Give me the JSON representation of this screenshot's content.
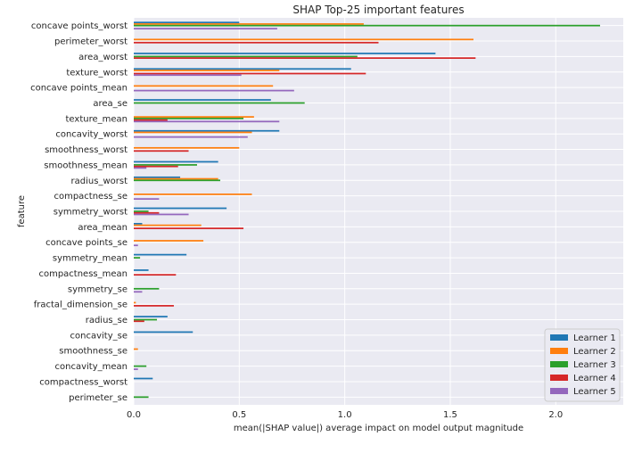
{
  "chart_data": {
    "type": "bar",
    "orientation": "horizontal",
    "title": "SHAP Top-25 important features",
    "xlabel": "mean(|SHAP value|) average impact on model output magnitude",
    "ylabel": "feature",
    "xlim": [
      0,
      2.32
    ],
    "xticks": [
      "0.0",
      "0.5",
      "1.0",
      "1.5",
      "2.0"
    ],
    "grid": true,
    "legend_position": "bottom-right",
    "categories": [
      "concave points_worst",
      "perimeter_worst",
      "area_worst",
      "texture_worst",
      "concave points_mean",
      "area_se",
      "texture_mean",
      "concavity_worst",
      "smoothness_worst",
      "smoothness_mean",
      "radius_worst",
      "compactness_se",
      "symmetry_worst",
      "area_mean",
      "concave points_se",
      "symmetry_mean",
      "compactness_mean",
      "symmetry_se",
      "fractal_dimension_se",
      "radius_se",
      "concavity_se",
      "smoothness_se",
      "concavity_mean",
      "compactness_worst",
      "perimeter_se"
    ],
    "series": [
      {
        "name": "Learner 1",
        "color": "#1f77b4",
        "values": [
          0.5,
          0.0,
          1.43,
          1.03,
          0.0,
          0.65,
          0.0,
          0.69,
          0.0,
          0.4,
          0.22,
          0.0,
          0.44,
          0.04,
          0.0,
          0.25,
          0.07,
          0.0,
          0.0,
          0.16,
          0.28,
          0.0,
          0.0,
          0.09,
          0.0
        ]
      },
      {
        "name": "Learner 2",
        "color": "#ff7f0e",
        "values": [
          1.09,
          1.61,
          0.0,
          0.69,
          0.66,
          0.0,
          0.57,
          0.56,
          0.5,
          0.0,
          0.4,
          0.56,
          0.0,
          0.32,
          0.33,
          0.0,
          0.0,
          0.0,
          0.01,
          0.0,
          0.0,
          0.02,
          0.0,
          0.0,
          0.0
        ]
      },
      {
        "name": "Learner 3",
        "color": "#2ca02c",
        "values": [
          2.21,
          0.0,
          1.06,
          0.0,
          0.0,
          0.81,
          0.52,
          0.0,
          0.0,
          0.3,
          0.41,
          0.0,
          0.07,
          0.0,
          0.0,
          0.03,
          0.0,
          0.12,
          0.0,
          0.11,
          0.0,
          0.0,
          0.06,
          0.0,
          0.07
        ]
      },
      {
        "name": "Learner 4",
        "color": "#d62728",
        "values": [
          0.0,
          1.16,
          1.62,
          1.1,
          0.0,
          0.0,
          0.16,
          0.0,
          0.26,
          0.21,
          0.0,
          0.0,
          0.12,
          0.52,
          0.0,
          0.0,
          0.2,
          0.0,
          0.19,
          0.05,
          0.0,
          0.0,
          0.0,
          0.0,
          0.0
        ]
      },
      {
        "name": "Learner 5",
        "color": "#9467bd",
        "values": [
          0.68,
          0.0,
          0.0,
          0.51,
          0.76,
          0.0,
          0.69,
          0.54,
          0.0,
          0.06,
          0.0,
          0.12,
          0.26,
          0.0,
          0.02,
          0.0,
          0.0,
          0.04,
          0.0,
          0.0,
          0.0,
          0.0,
          0.02,
          0.0,
          0.0
        ]
      }
    ]
  }
}
